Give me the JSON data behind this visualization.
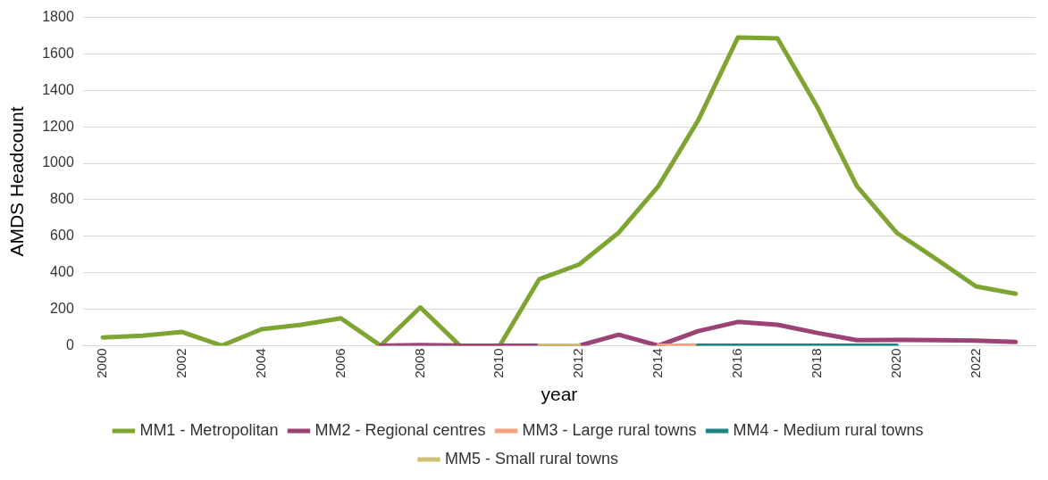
{
  "chart_data": {
    "type": "line",
    "xlabel": "year",
    "ylabel": "AMDS Headcount",
    "x": [
      2000,
      2001,
      2002,
      2003,
      2004,
      2005,
      2006,
      2007,
      2008,
      2009,
      2010,
      2011,
      2012,
      2013,
      2014,
      2015,
      2016,
      2017,
      2018,
      2019,
      2020,
      2021,
      2022,
      2023
    ],
    "xlim": [
      1999.5,
      2023.5
    ],
    "xticks": [
      2000,
      2002,
      2004,
      2006,
      2008,
      2010,
      2012,
      2014,
      2016,
      2018,
      2020,
      2022
    ],
    "ylim": [
      0,
      1800
    ],
    "yticks": [
      0,
      200,
      400,
      600,
      800,
      1000,
      1200,
      1400,
      1600,
      1800
    ],
    "grid": "y",
    "legend": "bottom",
    "marker": "none",
    "line_style": "solid",
    "series": [
      {
        "name": "MM1 - Metropolitan",
        "color": "#7ea432",
        "values": [
          45,
          55,
          75,
          0,
          90,
          115,
          150,
          0,
          210,
          0,
          0,
          365,
          445,
          620,
          875,
          1235,
          1690,
          1685,
          1310,
          875,
          620,
          475,
          325,
          285
        ]
      },
      {
        "name": "MM2 - Regional centres",
        "color": "#9b4374",
        "values": [
          null,
          null,
          null,
          null,
          null,
          null,
          null,
          0,
          3,
          0,
          0,
          0,
          0,
          60,
          0,
          80,
          130,
          115,
          70,
          30,
          32,
          30,
          28,
          20
        ]
      },
      {
        "name": "MM3 - Large rural towns",
        "color": "#f4a07a",
        "values": [
          null,
          null,
          null,
          null,
          null,
          null,
          null,
          null,
          null,
          null,
          null,
          null,
          null,
          null,
          0,
          0,
          null,
          null,
          null,
          null,
          null,
          null,
          null,
          null
        ]
      },
      {
        "name": "MM4 - Medium rural towns",
        "color": "#1e8483",
        "values": [
          null,
          null,
          null,
          null,
          null,
          null,
          null,
          null,
          null,
          null,
          null,
          null,
          null,
          null,
          null,
          0,
          0,
          0,
          0,
          0,
          0,
          null,
          null,
          null
        ]
      },
      {
        "name": "MM5 - Small rural towns",
        "color": "#cfc073",
        "values": [
          null,
          null,
          null,
          null,
          null,
          null,
          null,
          null,
          null,
          null,
          null,
          0,
          0,
          null,
          null,
          null,
          null,
          null,
          null,
          null,
          null,
          null,
          null,
          null
        ]
      }
    ]
  }
}
